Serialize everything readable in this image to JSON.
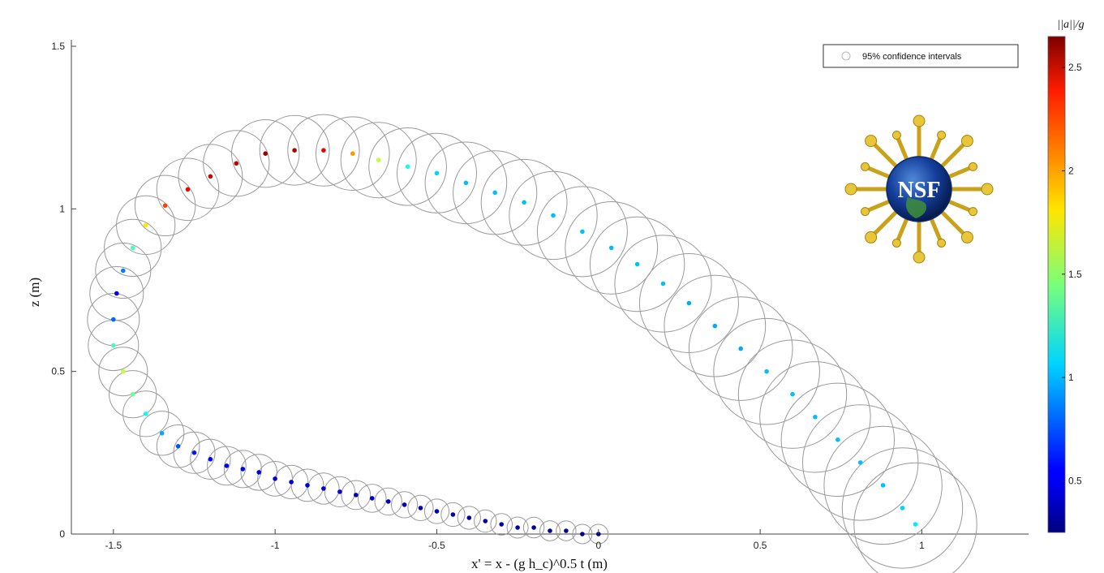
{
  "chart_data": {
    "type": "scatter",
    "xlabel": "x' = x - (g h_c)^0.5 t (m)",
    "ylabel": "z (m)",
    "xlim": [
      -1.63,
      1.33
    ],
    "ylim": [
      0,
      1.52
    ],
    "xticks": [
      "-1.5",
      "-1",
      "-0.5",
      "0",
      "0.5",
      "1"
    ],
    "yticks": [
      "0",
      "0.5",
      "1",
      "1.5"
    ],
    "legend": {
      "label": "95% confidence intervals",
      "position": "top-right"
    },
    "colorbar": {
      "label": "||a||/g",
      "range": [
        0.25,
        2.65
      ],
      "ticks": [
        "0.5",
        "1",
        "1.5",
        "2",
        "2.5"
      ],
      "colormap": "jet"
    },
    "confidence_radius_range": [
      0.03,
      0.19
    ],
    "circle_color": "#9a9a9a",
    "points": [
      [
        0.0,
        0.0,
        0.3
      ],
      [
        -0.05,
        0.0,
        0.3
      ],
      [
        -0.1,
        0.01,
        0.32
      ],
      [
        -0.15,
        0.01,
        0.33
      ],
      [
        -0.2,
        0.02,
        0.33
      ],
      [
        -0.25,
        0.02,
        0.34
      ],
      [
        -0.3,
        0.03,
        0.35
      ],
      [
        -0.35,
        0.04,
        0.35
      ],
      [
        -0.4,
        0.05,
        0.36
      ],
      [
        -0.45,
        0.06,
        0.37
      ],
      [
        -0.5,
        0.07,
        0.38
      ],
      [
        -0.55,
        0.08,
        0.38
      ],
      [
        -0.6,
        0.09,
        0.39
      ],
      [
        -0.65,
        0.1,
        0.39
      ],
      [
        -0.7,
        0.11,
        0.4
      ],
      [
        -0.75,
        0.12,
        0.4
      ],
      [
        -0.8,
        0.13,
        0.42
      ],
      [
        -0.85,
        0.14,
        0.42
      ],
      [
        -0.9,
        0.15,
        0.43
      ],
      [
        -0.95,
        0.16,
        0.44
      ],
      [
        -1.0,
        0.17,
        0.45
      ],
      [
        -1.05,
        0.19,
        0.46
      ],
      [
        -1.1,
        0.2,
        0.47
      ],
      [
        -1.15,
        0.21,
        0.5
      ],
      [
        -1.2,
        0.23,
        0.55
      ],
      [
        -1.25,
        0.25,
        0.6
      ],
      [
        -1.3,
        0.27,
        0.75
      ],
      [
        -1.35,
        0.31,
        0.95
      ],
      [
        -1.4,
        0.37,
        1.15
      ],
      [
        -1.44,
        0.43,
        1.4
      ],
      [
        -1.47,
        0.5,
        1.6
      ],
      [
        -1.5,
        0.58,
        1.3
      ],
      [
        -1.5,
        0.66,
        0.8
      ],
      [
        -1.49,
        0.74,
        0.5
      ],
      [
        -1.47,
        0.81,
        0.85
      ],
      [
        -1.44,
        0.88,
        1.3
      ],
      [
        -1.4,
        0.95,
        1.8
      ],
      [
        -1.34,
        1.01,
        2.2
      ],
      [
        -1.27,
        1.06,
        2.35
      ],
      [
        -1.2,
        1.1,
        2.45
      ],
      [
        -1.12,
        1.14,
        2.5
      ],
      [
        -1.03,
        1.17,
        2.6
      ],
      [
        -0.94,
        1.18,
        2.55
      ],
      [
        -0.85,
        1.18,
        2.4
      ],
      [
        -0.76,
        1.17,
        2.0
      ],
      [
        -0.68,
        1.15,
        1.6
      ],
      [
        -0.59,
        1.13,
        1.2
      ],
      [
        -0.5,
        1.11,
        1.05
      ],
      [
        -0.41,
        1.08,
        1.0
      ],
      [
        -0.32,
        1.05,
        1.0
      ],
      [
        -0.23,
        1.02,
        1.0
      ],
      [
        -0.14,
        0.98,
        1.0
      ],
      [
        -0.05,
        0.93,
        1.0
      ],
      [
        0.04,
        0.88,
        1.0
      ],
      [
        0.12,
        0.83,
        1.0
      ],
      [
        0.2,
        0.77,
        1.0
      ],
      [
        0.28,
        0.71,
        0.95
      ],
      [
        0.36,
        0.64,
        0.95
      ],
      [
        0.44,
        0.57,
        0.95
      ],
      [
        0.52,
        0.5,
        1.0
      ],
      [
        0.6,
        0.43,
        1.0
      ],
      [
        0.67,
        0.36,
        1.0
      ],
      [
        0.74,
        0.29,
        1.0
      ],
      [
        0.81,
        0.22,
        1.0
      ],
      [
        0.88,
        0.15,
        1.0
      ],
      [
        0.94,
        0.08,
        1.05
      ],
      [
        0.98,
        0.03,
        1.1
      ]
    ]
  },
  "nsf_logo": {
    "text": "NSF"
  }
}
